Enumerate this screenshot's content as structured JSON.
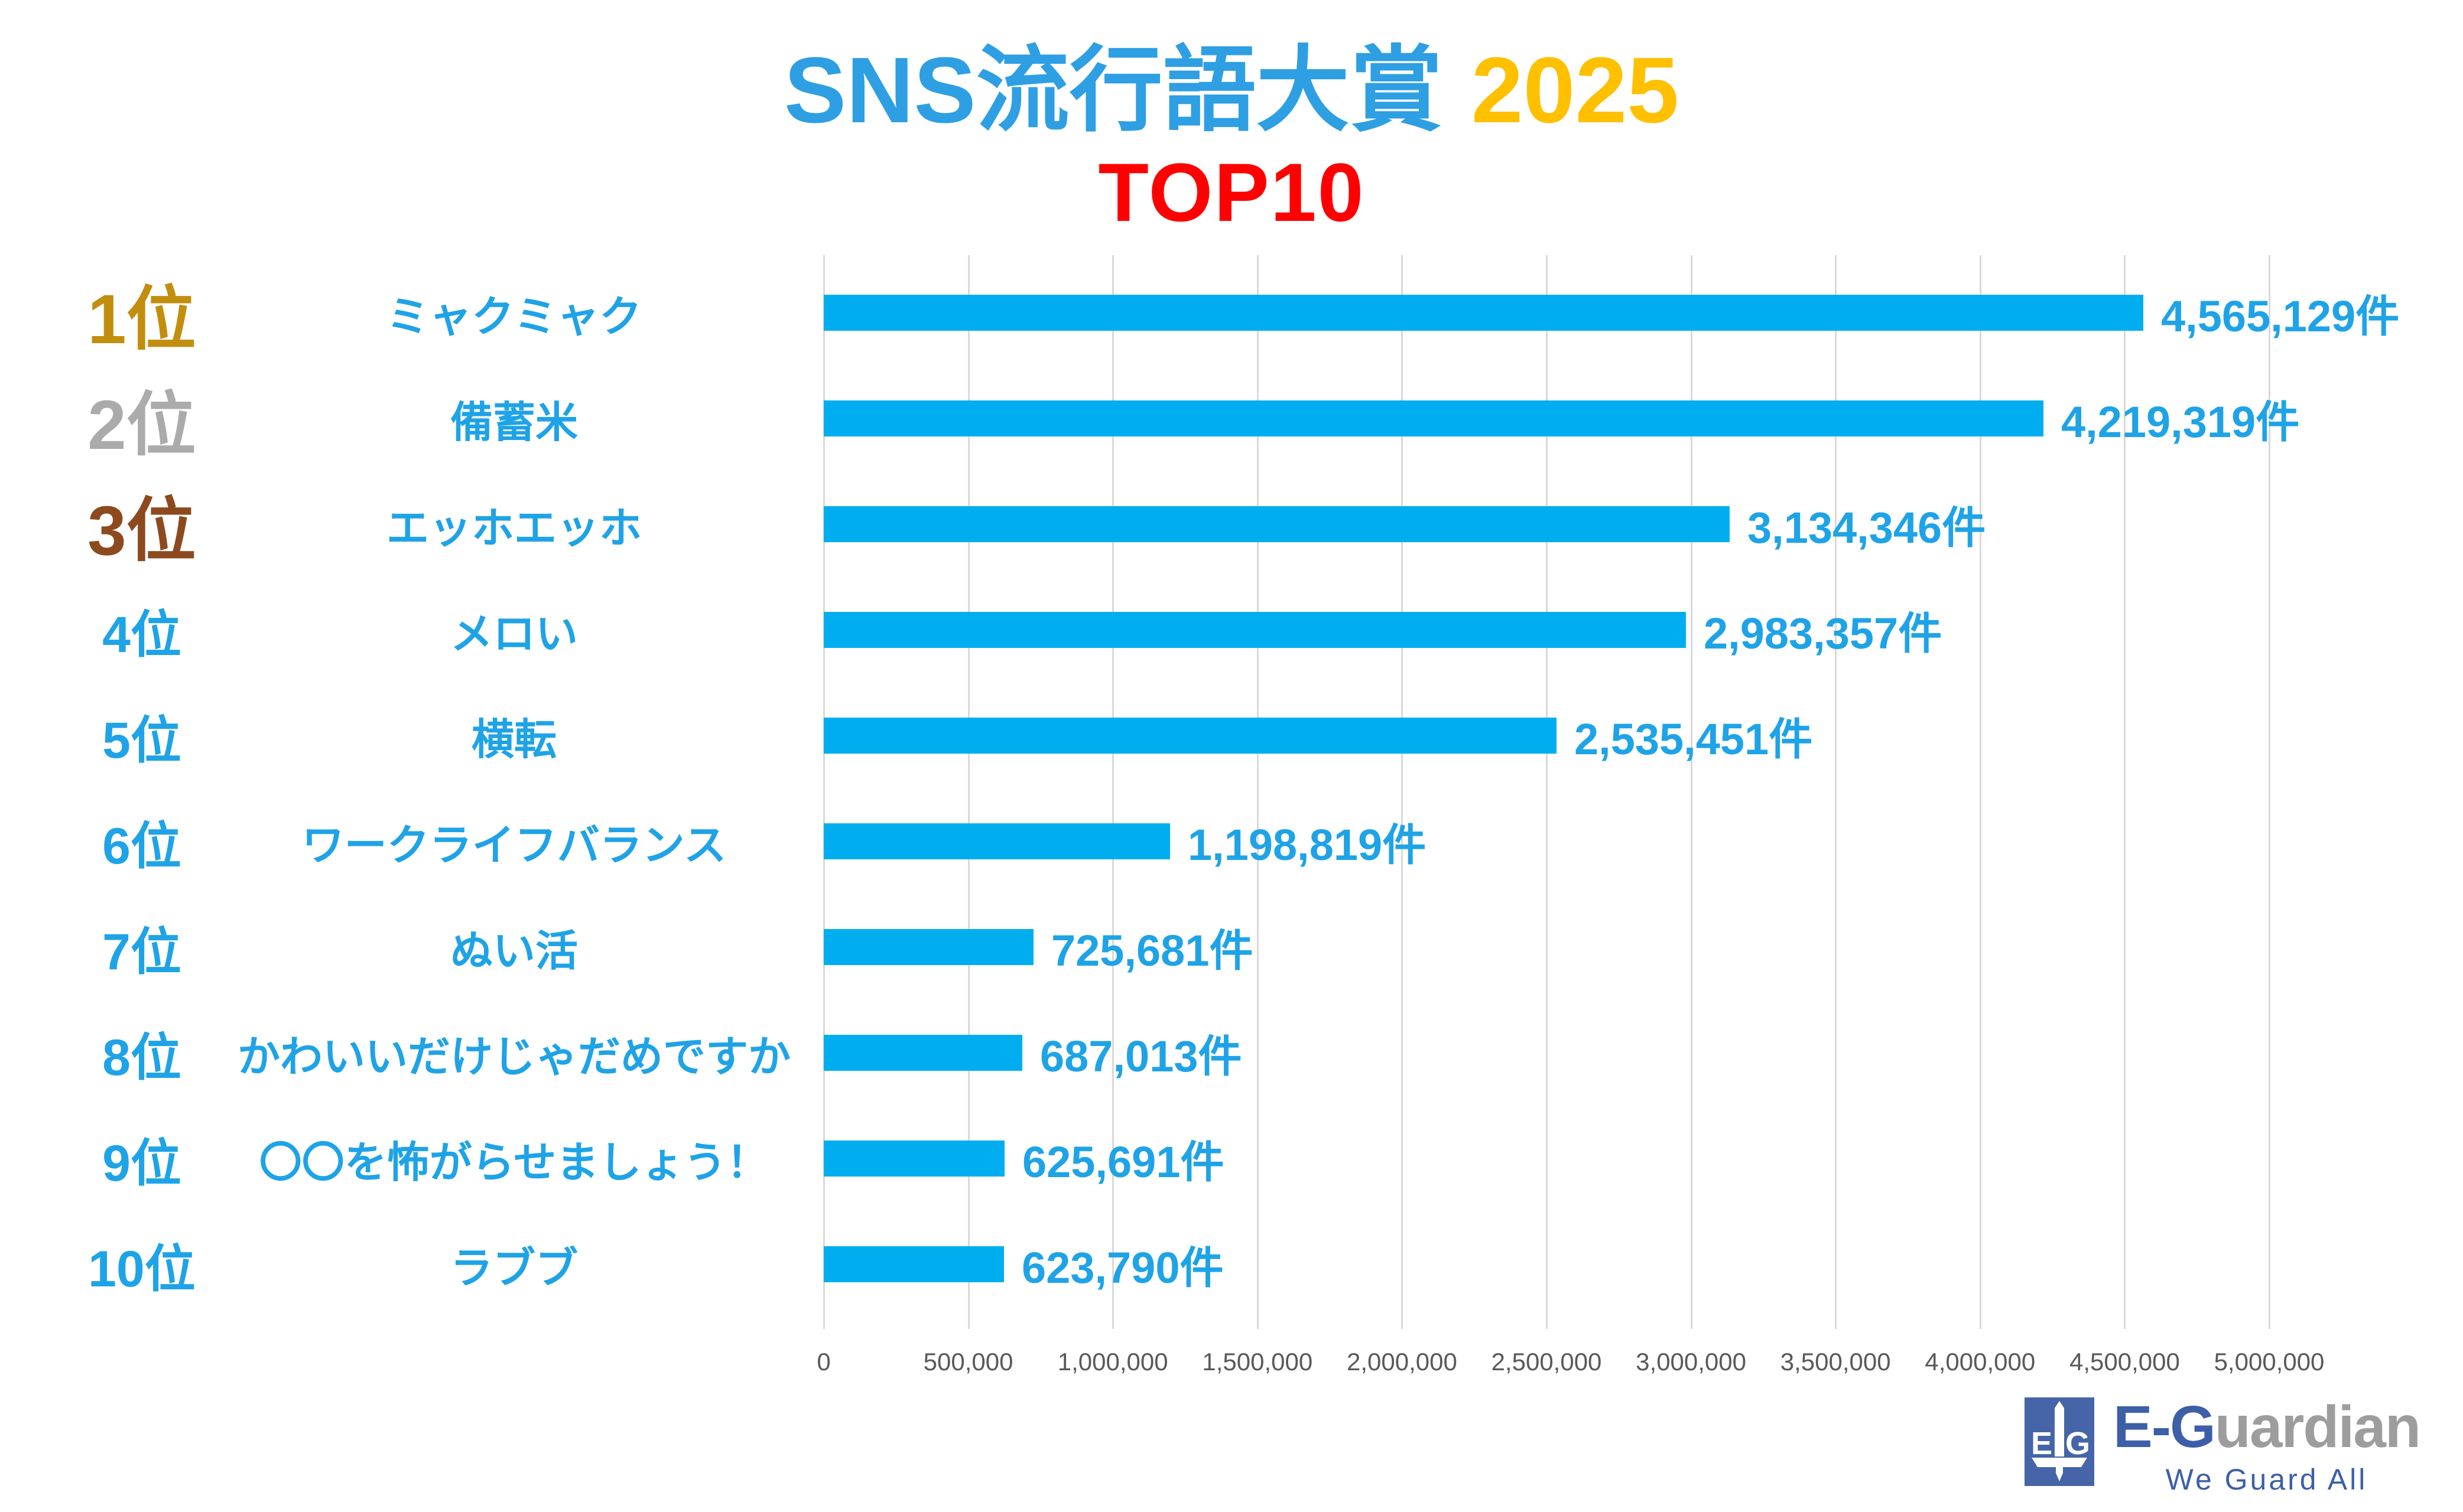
{
  "title": {
    "main": "SNS流行語大賞",
    "year": "2025",
    "subtitle": "TOP10"
  },
  "chart_data": {
    "type": "bar",
    "orientation": "horizontal",
    "title": "SNS流行語大賞 2025 TOP10",
    "unit": "件",
    "ranks": [
      "1位",
      "2位",
      "3位",
      "4位",
      "5位",
      "6位",
      "7位",
      "8位",
      "9位",
      "10位"
    ],
    "categories": [
      "ミャクミャク",
      "備蓄米",
      "エッホエッホ",
      "メロい",
      "横転",
      "ワークライフバランス",
      "ぬい活",
      "かわいいだけじゃだめですか",
      "〇〇を怖がらせましょう！",
      "ラブブ"
    ],
    "values": [
      4565129,
      4219319,
      3134346,
      2983357,
      2535451,
      1198819,
      725681,
      687013,
      625691,
      623790
    ],
    "value_labels": [
      "4,565,129件",
      "4,219,319件",
      "3,134,346件",
      "2,983,357件",
      "2,535,451件",
      "1,198,819件",
      "725,681件",
      "687,013件",
      "625,691件",
      "623,790件"
    ],
    "xlim": [
      0,
      5000000
    ],
    "x_ticks": [
      "0",
      "500,000",
      "1,000,000",
      "1,500,000",
      "2,000,000",
      "2,500,000",
      "3,000,000",
      "3,500,000",
      "4,000,000",
      "4,500,000",
      "5,000,000"
    ],
    "grid": true,
    "legend_position": "none"
  },
  "colors": {
    "bar": "#00AEEF",
    "text_blue": "#1FA3E7",
    "title_blue": "#2E9FE3",
    "year_gold": "#FFC000",
    "top10_red": "#FF0000",
    "rank_gold": "#C28E0E",
    "rank_silver": "#ABABAB",
    "rank_bronze": "#8C4A1E",
    "grid": "#D9D9D9",
    "axis_text": "#595959",
    "logo_blue": "#4565A8",
    "logo_text_blue": "#3D5FA8",
    "logo_text_gray": "#9D9D9D"
  },
  "logo": {
    "mark_left": "E",
    "mark_right": "G",
    "name_primary": "E-G",
    "name_secondary": "uardian",
    "tagline": "We Guard All"
  }
}
